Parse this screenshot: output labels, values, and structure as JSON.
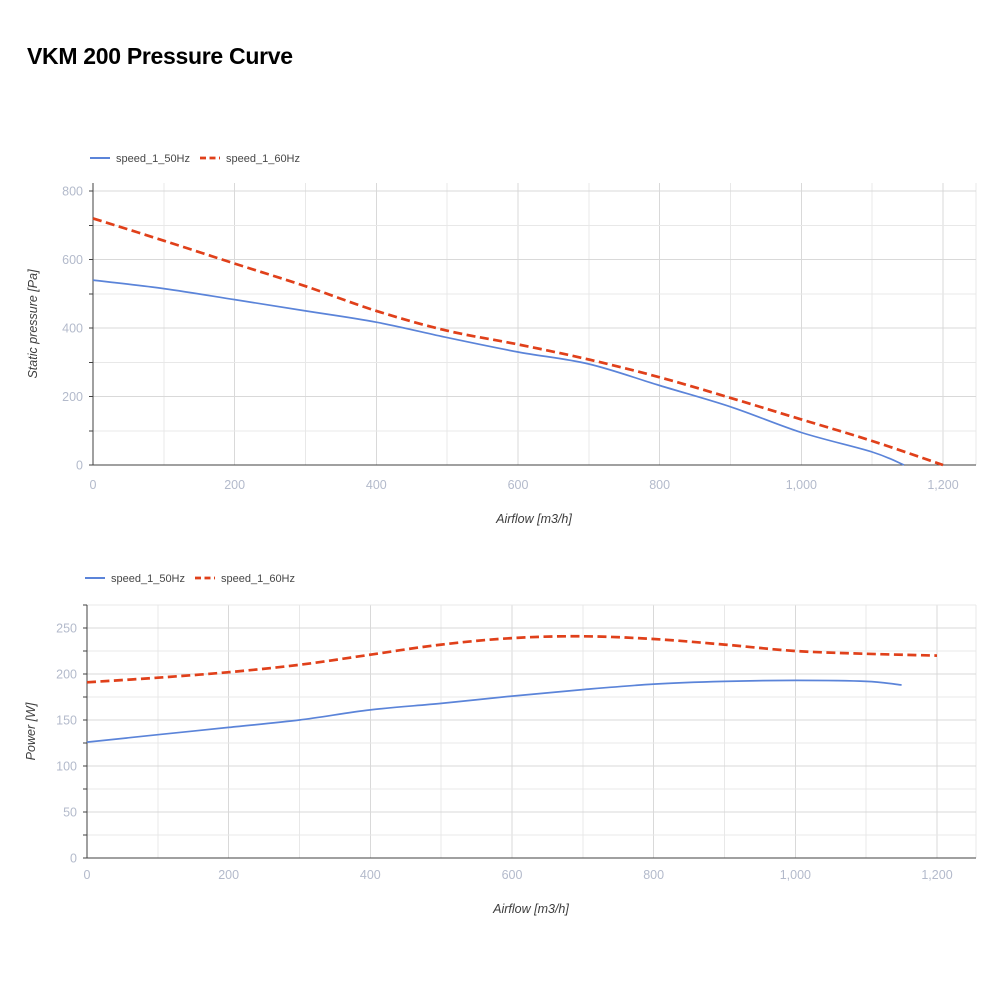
{
  "page": {
    "title": "VKM 200 Pressure Curve"
  },
  "palette": {
    "series_blue": "#5b84d9",
    "series_red": "#e0401a",
    "tick_label": "#b3bacb",
    "axis_line": "#424242",
    "grid_minor": "#e8e8e8",
    "grid_major": "#d9d9d9",
    "axis_title": "#3d3d3d",
    "legend_text": "#474747",
    "title_text": "#000000"
  },
  "chart_data": [
    {
      "id": "pressure",
      "type": "line",
      "title": "",
      "xlabel": "Airflow [m3/h]",
      "ylabel": "Static pressure [Pa]",
      "xlim": [
        0,
        1250
      ],
      "ylim": [
        0,
        825
      ],
      "grid": true,
      "legend_position": "top-left",
      "x_ticks": {
        "values": [
          0,
          200,
          400,
          600,
          800,
          1000,
          1200
        ],
        "labels": [
          "0",
          "200",
          "400",
          "600",
          "800",
          "1,000",
          "1,200"
        ]
      },
      "y_ticks": {
        "values": [
          0,
          200,
          400,
          600,
          800
        ],
        "labels": [
          "0",
          "200",
          "400",
          "600",
          "800"
        ]
      },
      "x_minor_step": 100,
      "y_minor_step": 100,
      "series": [
        {
          "name": "speed_1_50Hz",
          "color": "#5b84d9",
          "line_style": "solid",
          "points": [
            [
              0,
              540
            ],
            [
              100,
              515
            ],
            [
              200,
              483
            ],
            [
              300,
              450
            ],
            [
              400,
              417
            ],
            [
              500,
              372
            ],
            [
              600,
              330
            ],
            [
              700,
              295
            ],
            [
              800,
              232
            ],
            [
              900,
              170
            ],
            [
              1000,
              95
            ],
            [
              1100,
              38
            ],
            [
              1145,
              0
            ]
          ]
        },
        {
          "name": "speed_1_60Hz",
          "color": "#e0401a",
          "line_style": "dashed",
          "points": [
            [
              0,
              720
            ],
            [
              100,
              655
            ],
            [
              200,
              588
            ],
            [
              300,
              522
            ],
            [
              400,
              450
            ],
            [
              500,
              392
            ],
            [
              600,
              352
            ],
            [
              700,
              308
            ],
            [
              800,
              256
            ],
            [
              900,
              196
            ],
            [
              1000,
              133
            ],
            [
              1100,
              70
            ],
            [
              1200,
              0
            ]
          ]
        }
      ]
    },
    {
      "id": "power",
      "type": "line",
      "title": "",
      "xlabel": "Airflow [m3/h]",
      "ylabel": "Power [W]",
      "xlim": [
        0,
        1250
      ],
      "ylim": [
        0,
        275
      ],
      "grid": true,
      "legend_position": "top-left",
      "x_ticks": {
        "values": [
          0,
          200,
          400,
          600,
          800,
          1000,
          1200
        ],
        "labels": [
          "0",
          "200",
          "400",
          "600",
          "800",
          "1,000",
          "1,200"
        ]
      },
      "y_ticks": {
        "values": [
          0,
          50,
          100,
          150,
          200,
          250
        ],
        "labels": [
          "0",
          "50",
          "100",
          "150",
          "200",
          "250"
        ]
      },
      "x_minor_step": 100,
      "y_minor_step": 25,
      "series": [
        {
          "name": "speed_1_50Hz",
          "color": "#5b84d9",
          "line_style": "solid",
          "points": [
            [
              0,
              126
            ],
            [
              100,
              134
            ],
            [
              200,
              142
            ],
            [
              300,
              150
            ],
            [
              400,
              161
            ],
            [
              500,
              168
            ],
            [
              600,
              176
            ],
            [
              700,
              183
            ],
            [
              800,
              189
            ],
            [
              900,
              192
            ],
            [
              1000,
              193
            ],
            [
              1100,
              192
            ],
            [
              1150,
              188
            ]
          ]
        },
        {
          "name": "speed_1_60Hz",
          "color": "#e0401a",
          "line_style": "dashed",
          "points": [
            [
              0,
              191
            ],
            [
              100,
              196
            ],
            [
              200,
              202
            ],
            [
              300,
              210
            ],
            [
              400,
              221
            ],
            [
              500,
              232
            ],
            [
              600,
              239
            ],
            [
              700,
              241
            ],
            [
              800,
              238
            ],
            [
              900,
              232
            ],
            [
              1000,
              225
            ],
            [
              1100,
              222
            ],
            [
              1200,
              220
            ]
          ]
        }
      ]
    }
  ]
}
